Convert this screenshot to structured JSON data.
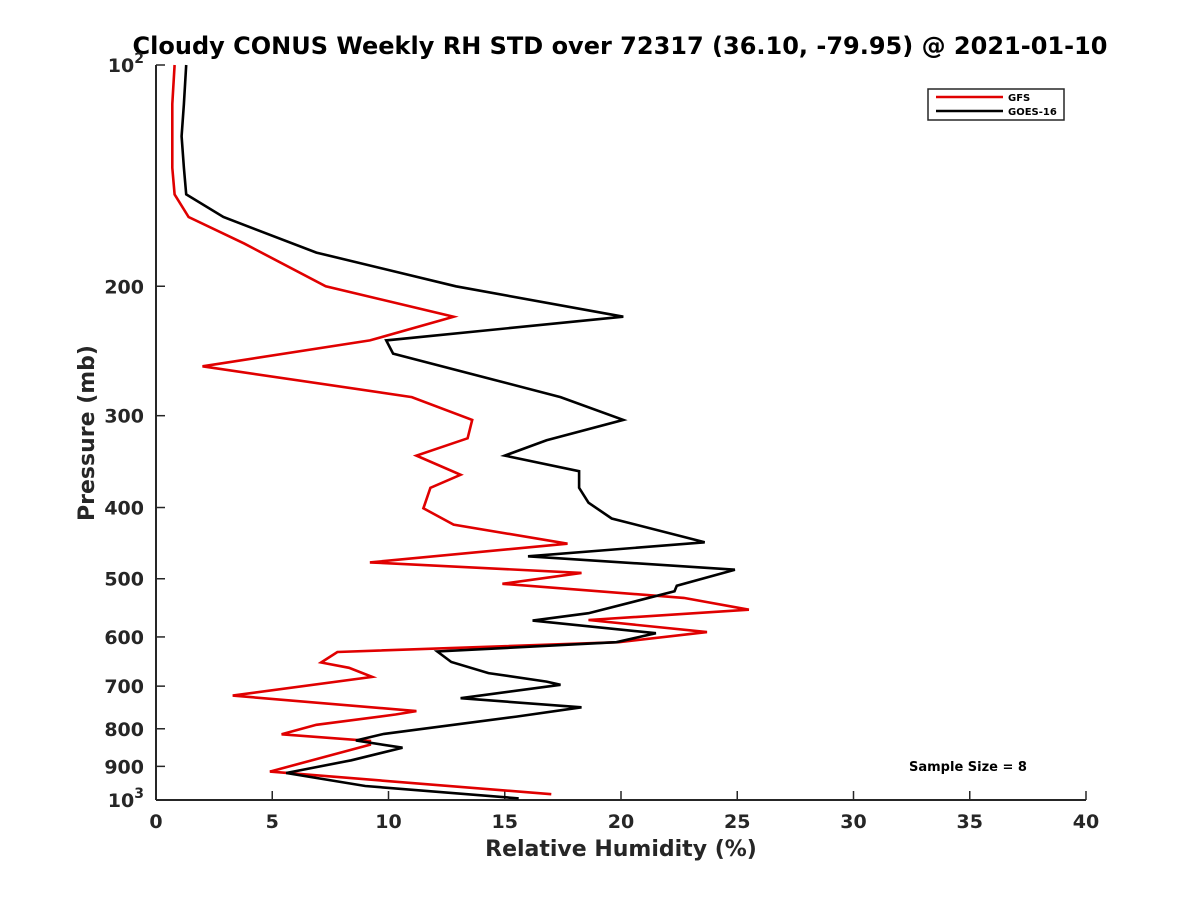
{
  "chart_data": {
    "type": "line",
    "title": "Cloudy CONUS Weekly RH STD over 72317 (36.10, -79.95) @ 2021-01-10",
    "xlabel": "Relative Humidity (%)",
    "ylabel": "Pressure (mb)",
    "xlim": [
      0,
      40
    ],
    "ylim": [
      100,
      1000
    ],
    "yscale": "log",
    "y_reversed": true,
    "grid": false,
    "legend_position": "top-right",
    "x_ticks": [
      0,
      5,
      10,
      15,
      20,
      25,
      30,
      35,
      40
    ],
    "y_ticks": [
      {
        "value": 100,
        "base": "10",
        "exp": "2"
      },
      {
        "value": 200,
        "label": "200"
      },
      {
        "value": 300,
        "label": "300"
      },
      {
        "value": 400,
        "label": "400"
      },
      {
        "value": 500,
        "label": "500"
      },
      {
        "value": 600,
        "label": "600"
      },
      {
        "value": 700,
        "label": "700"
      },
      {
        "value": 800,
        "label": "800"
      },
      {
        "value": 900,
        "label": "900"
      },
      {
        "value": 1000,
        "base": "10",
        "exp": "3"
      }
    ],
    "annotation": "Sample Size = 8",
    "series": [
      {
        "name": "GFS",
        "color": "#e00000",
        "points": [
          [
            0.8,
            100
          ],
          [
            0.7,
            113
          ],
          [
            0.7,
            125
          ],
          [
            0.7,
            138
          ],
          [
            0.8,
            150
          ],
          [
            1.4,
            161
          ],
          [
            3.8,
            175
          ],
          [
            7.3,
            200
          ],
          [
            12.8,
            220
          ],
          [
            9.2,
            237
          ],
          [
            2.0,
            257
          ],
          [
            11.0,
            283
          ],
          [
            13.6,
            304
          ],
          [
            13.4,
            322
          ],
          [
            11.2,
            340
          ],
          [
            13.1,
            361
          ],
          [
            11.8,
            376
          ],
          [
            11.5,
            401
          ],
          [
            12.8,
            422
          ],
          [
            17.7,
            448
          ],
          [
            9.2,
            475
          ],
          [
            18.3,
            491
          ],
          [
            14.9,
            508
          ],
          [
            22.7,
            531
          ],
          [
            25.5,
            551
          ],
          [
            18.6,
            569
          ],
          [
            23.7,
            591
          ],
          [
            19.9,
            610
          ],
          [
            7.8,
            629
          ],
          [
            7.1,
            650
          ],
          [
            8.3,
            661
          ],
          [
            9.3,
            680
          ],
          [
            3.3,
            721
          ],
          [
            11.2,
            757
          ],
          [
            10.3,
            765
          ],
          [
            6.9,
            790
          ],
          [
            5.4,
            814
          ],
          [
            9.2,
            831
          ],
          [
            9.2,
            841
          ],
          [
            4.9,
            915
          ],
          [
            17.0,
            982
          ]
        ]
      },
      {
        "name": "GOES-16",
        "color": "#000000",
        "points": [
          [
            1.3,
            100
          ],
          [
            1.2,
            113
          ],
          [
            1.1,
            125
          ],
          [
            1.2,
            138
          ],
          [
            1.3,
            150
          ],
          [
            2.9,
            161
          ],
          [
            6.9,
            180
          ],
          [
            12.9,
            200
          ],
          [
            20.1,
            220
          ],
          [
            9.9,
            237
          ],
          [
            10.2,
            247
          ],
          [
            17.4,
            283
          ],
          [
            20.1,
            304
          ],
          [
            16.8,
            324
          ],
          [
            15.0,
            340
          ],
          [
            18.2,
            357
          ],
          [
            18.2,
            376
          ],
          [
            18.6,
            394
          ],
          [
            19.6,
            414
          ],
          [
            23.6,
            446
          ],
          [
            16.0,
            466
          ],
          [
            24.9,
            486
          ],
          [
            22.4,
            511
          ],
          [
            22.3,
            520
          ],
          [
            18.6,
            557
          ],
          [
            16.2,
            570
          ],
          [
            21.5,
            593
          ],
          [
            19.8,
            610
          ],
          [
            12.1,
            628
          ],
          [
            12.7,
            649
          ],
          [
            14.3,
            672
          ],
          [
            16.8,
            690
          ],
          [
            17.4,
            697
          ],
          [
            13.1,
            727
          ],
          [
            18.3,
            748
          ],
          [
            15.5,
            770
          ],
          [
            9.8,
            813
          ],
          [
            8.6,
            830
          ],
          [
            10.6,
            849
          ],
          [
            8.4,
            883
          ],
          [
            5.6,
            919
          ],
          [
            9.0,
            957
          ],
          [
            15.6,
            995
          ]
        ]
      }
    ]
  }
}
